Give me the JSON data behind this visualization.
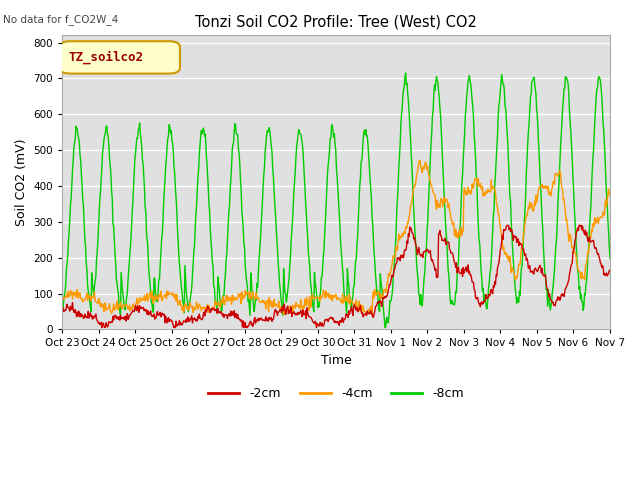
{
  "title": "Tonzi Soil CO2 Profile: Tree (West) CO2",
  "top_left_text": "No data for f_CO2W_4",
  "ylabel": "Soil CO2 (mV)",
  "xlabel": "Time",
  "legend_label_box": "TZ_soilco2",
  "series_labels": [
    "-2cm",
    "-4cm",
    "-8cm"
  ],
  "series_colors": [
    "#cc0000",
    "#ff9900",
    "#00cc00"
  ],
  "ylim": [
    0,
    820
  ],
  "yticks": [
    0,
    100,
    200,
    300,
    400,
    500,
    600,
    700,
    800
  ],
  "bg_color": "#e0e0e0",
  "fig_bg": "#ffffff",
  "linewidth": 1.0,
  "xtick_labels": [
    "Oct 23",
    "Oct 24",
    "Oct 25",
    "Oct 26",
    "Oct 27",
    "Oct 28",
    "Oct 29",
    "Oct 30",
    "Oct 31",
    "Nov 1",
    "Nov 2",
    "Nov 3",
    "Nov 4",
    "Nov 5",
    "Nov 6",
    "Nov 7"
  ],
  "n_points": 800
}
